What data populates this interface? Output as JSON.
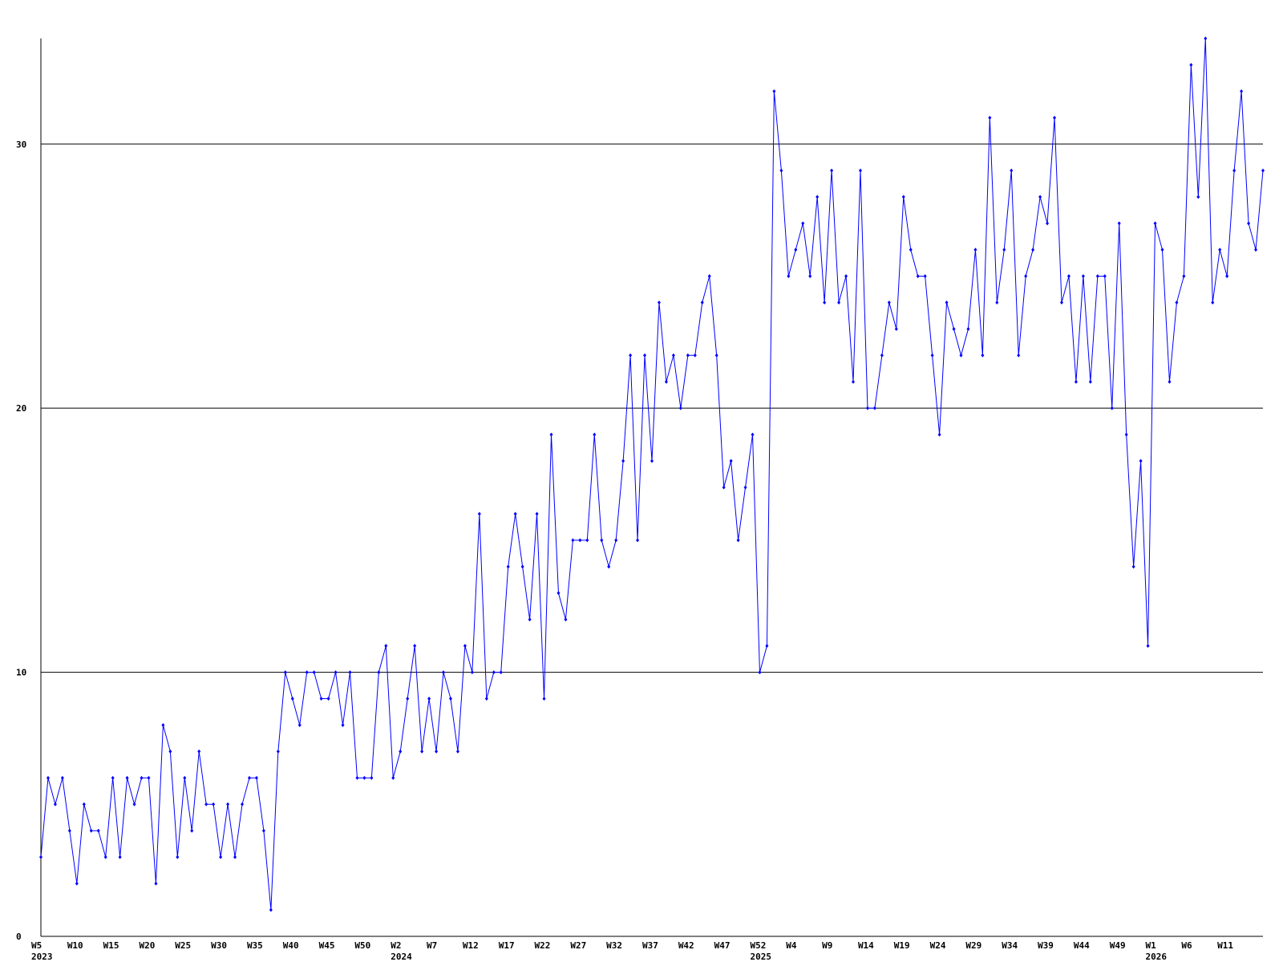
{
  "chart_data": {
    "type": "line",
    "categories": [
      "W5",
      null,
      null,
      null,
      null,
      "W10",
      null,
      null,
      null,
      null,
      "W15",
      null,
      null,
      null,
      null,
      "W20",
      null,
      null,
      null,
      null,
      "W25",
      null,
      null,
      null,
      null,
      "W30",
      null,
      null,
      null,
      null,
      "W35",
      null,
      null,
      null,
      null,
      "W40",
      null,
      null,
      null,
      null,
      "W45",
      null,
      null,
      null,
      null,
      "W50",
      null,
      null,
      null,
      null,
      "W2",
      null,
      null,
      null,
      null,
      "W7",
      null,
      null,
      null,
      null,
      "W12",
      null,
      null,
      null,
      null,
      "W17",
      null,
      null,
      null,
      null,
      "W22",
      null,
      null,
      null,
      null,
      "W27",
      null,
      null,
      null,
      null,
      "W32",
      null,
      null,
      null,
      null,
      "W37",
      null,
      null,
      null,
      null,
      "W42",
      null,
      null,
      null,
      null,
      "W47",
      null,
      null,
      null,
      null,
      "W52",
      null,
      null,
      null,
      null,
      "W4",
      null,
      null,
      null,
      null,
      "W9",
      null,
      null,
      null,
      null,
      "W14",
      null,
      null,
      null,
      null,
      "W19",
      null,
      null,
      null,
      null,
      "W24",
      null,
      null,
      null,
      null,
      "W29",
      null,
      null,
      null,
      null,
      "W34",
      null,
      null,
      null,
      null,
      "W39",
      null,
      null,
      null,
      null,
      "W44",
      null,
      null,
      null,
      null,
      "W49",
      null,
      null,
      null,
      null,
      "W1",
      null,
      null,
      null,
      null,
      "W6",
      null,
      null,
      null,
      null,
      "W11",
      null,
      null,
      null,
      null,
      null
    ],
    "category_years": [
      "2023",
      null,
      null,
      null,
      null,
      null,
      null,
      null,
      null,
      null,
      null,
      null,
      null,
      null,
      null,
      null,
      null,
      null,
      null,
      null,
      null,
      null,
      null,
      null,
      null,
      null,
      null,
      null,
      null,
      null,
      null,
      null,
      null,
      null,
      null,
      null,
      null,
      null,
      null,
      null,
      null,
      null,
      null,
      null,
      null,
      null,
      null,
      null,
      null,
      null,
      "2024",
      null,
      null,
      null,
      null,
      null,
      null,
      null,
      null,
      null,
      null,
      null,
      null,
      null,
      null,
      null,
      null,
      null,
      null,
      null,
      null,
      null,
      null,
      null,
      null,
      null,
      null,
      null,
      null,
      null,
      null,
      null,
      null,
      null,
      null,
      null,
      null,
      null,
      null,
      null,
      null,
      null,
      null,
      null,
      null,
      null,
      null,
      null,
      null,
      null,
      "2025",
      null,
      null,
      null,
      null,
      null,
      null,
      null,
      null,
      null,
      null,
      null,
      null,
      null,
      null,
      null,
      null,
      null,
      null,
      null,
      null,
      null,
      null,
      null,
      null,
      null,
      null,
      null,
      null,
      null,
      null,
      null,
      null,
      null,
      null,
      null,
      null,
      null,
      null,
      null,
      null,
      null,
      null,
      null,
      null,
      null,
      null,
      null,
      null,
      null,
      null,
      null,
      null,
      null,
      null,
      "2026",
      null,
      null,
      null,
      null,
      null,
      null,
      null,
      null,
      null,
      null,
      null,
      null,
      null,
      null,
      null
    ],
    "series": [
      {
        "color": "#0000ff",
        "values": [
          3,
          6,
          5,
          6,
          4,
          2,
          5,
          4,
          4,
          3,
          6,
          3,
          6,
          5,
          6,
          6,
          2,
          8,
          7,
          3,
          6,
          4,
          7,
          5,
          5,
          3,
          5,
          3,
          5,
          6,
          6,
          4,
          1,
          7,
          10,
          9,
          8,
          10,
          10,
          9,
          9,
          10,
          8,
          10,
          6,
          6,
          6,
          10,
          11,
          6,
          7,
          9,
          11,
          7,
          9,
          7,
          10,
          9,
          7,
          11,
          10,
          16,
          9,
          10,
          10,
          14,
          16,
          14,
          12,
          16,
          9,
          19,
          13,
          12,
          15,
          15,
          15,
          19,
          15,
          14,
          15,
          18,
          22,
          15,
          22,
          18,
          24,
          21,
          22,
          20,
          22,
          22,
          24,
          25,
          22,
          17,
          18,
          15,
          17,
          19,
          10,
          11,
          32,
          29,
          25,
          26,
          27,
          25,
          28,
          24,
          29,
          24,
          25,
          21,
          29,
          20,
          20,
          22,
          24,
          23,
          28,
          26,
          25,
          25,
          22,
          19,
          24,
          23,
          22,
          23,
          26,
          22,
          31,
          24,
          26,
          29,
          22,
          25,
          26,
          28,
          27,
          31,
          24,
          25,
          21,
          25,
          21,
          25,
          25,
          20,
          27,
          19,
          14,
          18,
          11,
          27,
          26,
          21,
          24,
          25,
          33,
          28,
          34,
          24,
          26,
          25,
          29,
          32,
          27,
          26,
          29
        ]
      }
    ],
    "ylim": [
      0,
      34
    ],
    "yticks": [
      0,
      10,
      20,
      30
    ],
    "grid": true
  }
}
